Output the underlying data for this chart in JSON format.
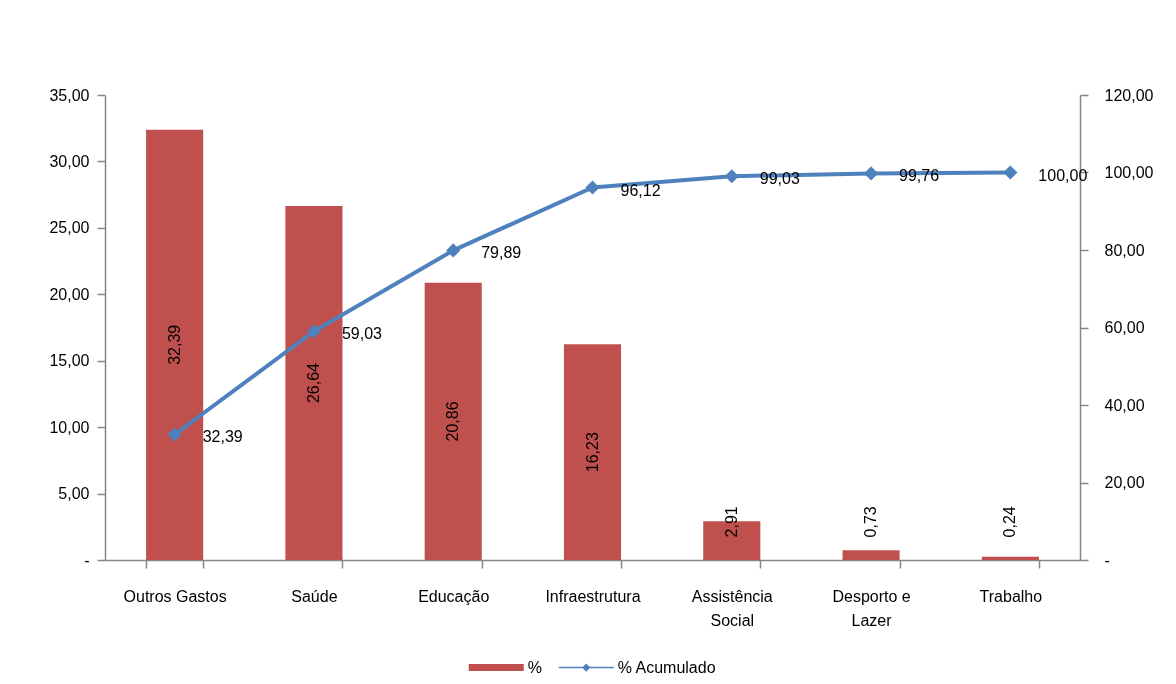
{
  "chart_data": {
    "type": "bar",
    "categories": [
      "Outros Gastos",
      "Saúde",
      "Educação",
      "Infraestrutura",
      "Assistência Social",
      "Desporto e Lazer",
      "Trabalho"
    ],
    "series": [
      {
        "name": "%",
        "color": "#c0504d",
        "values": [
          32.39,
          26.64,
          20.86,
          16.23,
          2.91,
          0.73,
          0.24
        ],
        "value_labels": [
          "32,39",
          "26,64",
          "20,86",
          "16,23",
          "2,91",
          "0,73",
          "0,24"
        ]
      },
      {
        "name": "% Acumulado",
        "type": "line",
        "axis": "y2",
        "color": "#4f81bd",
        "values": [
          32.39,
          59.03,
          79.89,
          96.12,
          99.03,
          99.76,
          100.0
        ],
        "value_labels": [
          "32,39",
          "59,03",
          "79,89",
          "96,12",
          "99,03",
          "99,76",
          "100,00"
        ]
      }
    ],
    "ylim": [
      0,
      35
    ],
    "yticks": [
      {
        "value": 0,
        "label": "-"
      },
      {
        "value": 5,
        "label": "5,00"
      },
      {
        "value": 10,
        "label": "10,00"
      },
      {
        "value": 15,
        "label": "15,00"
      },
      {
        "value": 20,
        "label": "20,00"
      },
      {
        "value": 25,
        "label": "25,00"
      },
      {
        "value": 30,
        "label": "30,00"
      },
      {
        "value": 35,
        "label": "35,00"
      }
    ],
    "y2lim": [
      0,
      120
    ],
    "y2ticks": [
      {
        "value": 0,
        "label": "-"
      },
      {
        "value": 20,
        "label": "20,00"
      },
      {
        "value": 40,
        "label": "40,00"
      },
      {
        "value": 60,
        "label": "60,00"
      },
      {
        "value": 80,
        "label": "80,00"
      },
      {
        "value": 100,
        "label": "100,00"
      },
      {
        "value": 120,
        "label": "120,00"
      }
    ],
    "marker": "diamond",
    "legend": "bottom",
    "grid": false
  }
}
